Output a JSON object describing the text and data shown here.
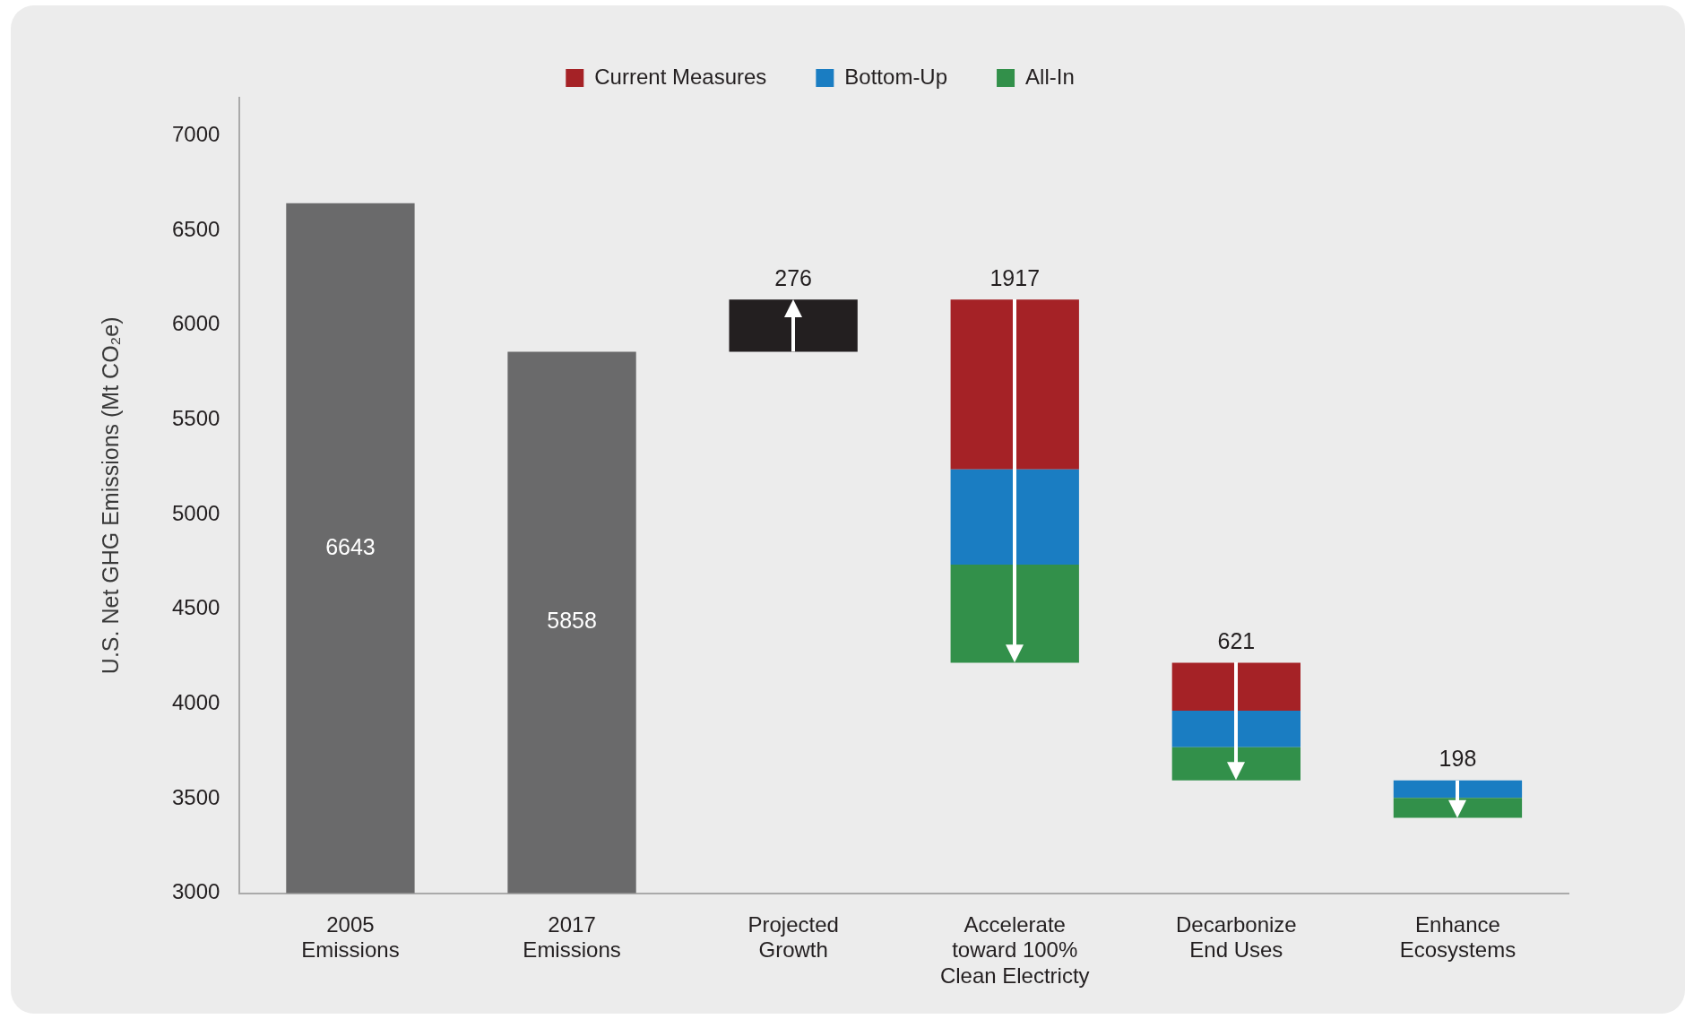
{
  "chart_data": {
    "type": "bar",
    "ylabel": "U.S. Net GHG Emissions (Mt CO₂e)",
    "categories": [
      "2005\nEmissions",
      "2017\nEmissions",
      "Projected\nGrowth",
      "Accelerate\ntoward 100%\nClean Electricty",
      "Decarbonize\nEnd Uses",
      "Enhance\nEcosystems"
    ],
    "series": [
      {
        "color": "#6a6a6b",
        "values": [
          6643,
          5858,
          null,
          null,
          null,
          null
        ],
        "value_labels": [
          "6643",
          "5858",
          null,
          null,
          null,
          null
        ]
      },
      {
        "color": "#231f20",
        "values": [
          null,
          null,
          276,
          null,
          null,
          null
        ],
        "base": [
          null,
          null,
          5858,
          null,
          null,
          null
        ]
      },
      {
        "name": "All-In",
        "color": "#32904a",
        "values": [
          null,
          null,
          null,
          518,
          175,
          105
        ],
        "base": [
          null,
          null,
          null,
          4217,
          3596,
          3398
        ]
      },
      {
        "name": "Bottom-Up",
        "color": "#1a7dc2",
        "values": [
          null,
          null,
          null,
          503,
          193,
          93
        ],
        "base": [
          null,
          null,
          null,
          4735,
          3771,
          3503
        ]
      },
      {
        "name": "Current Measures",
        "color": "#a52226",
        "values": [
          null,
          null,
          null,
          896,
          253,
          null
        ],
        "base": [
          null,
          null,
          null,
          5238,
          3964,
          null
        ]
      }
    ],
    "annotations": [
      {
        "text": "276",
        "x": "Projected\nGrowth",
        "y": 6134
      },
      {
        "text": "1917",
        "x": "Accelerate\ntoward 100%\nClean Electricty",
        "y": 6134
      },
      {
        "text": "621",
        "x": "Decarbonize\nEnd Uses",
        "y": 4217
      },
      {
        "text": "198",
        "x": "Enhance\nEcosystems",
        "y": 3596
      }
    ],
    "ylim": [
      3000,
      7200
    ],
    "yticks": [
      3000,
      3500,
      4000,
      4500,
      5000,
      5500,
      6000,
      6500,
      7000
    ],
    "grid": false,
    "legend": "top"
  }
}
